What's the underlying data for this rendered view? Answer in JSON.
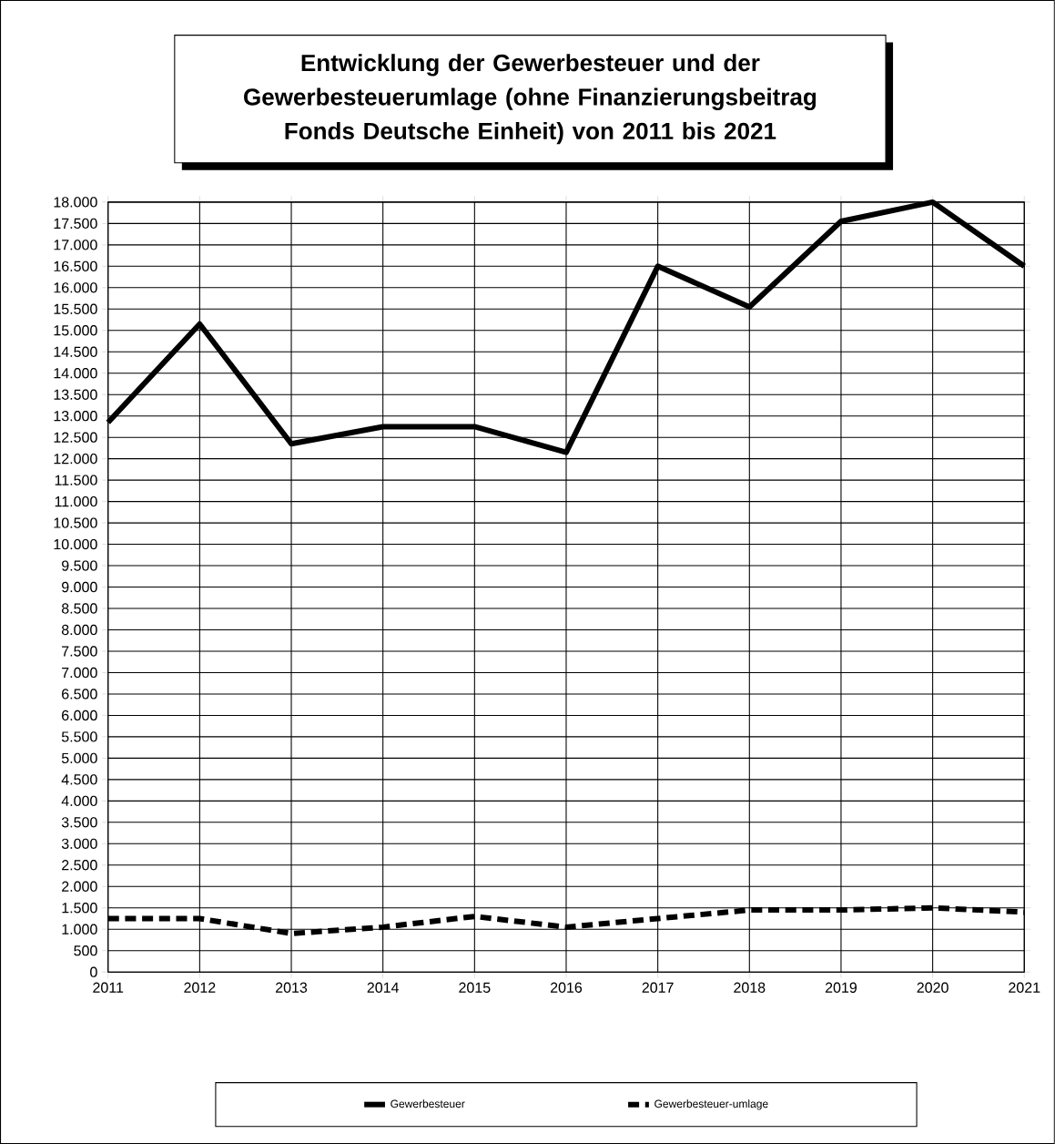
{
  "chart_data": {
    "type": "line",
    "title": "Entwicklung der Gewerbesteuer und der Gewerbesteuerumlage (ohne Finanzierungsbeitrag Fonds Deutsche Einheit)  von 2011 bis 2021",
    "x": [
      2011,
      2012,
      2013,
      2014,
      2015,
      2016,
      2017,
      2018,
      2019,
      2020,
      2021
    ],
    "series": [
      {
        "name": "Gewerbesteuer",
        "color": "#000000",
        "line_style": "solid",
        "values": [
          12850,
          15150,
          12350,
          12750,
          12750,
          12150,
          16500,
          15550,
          17550,
          18000,
          16500
        ]
      },
      {
        "name": "Gewerbesteuer-umlage",
        "color": "#000000",
        "line_style": "dashed",
        "values": [
          1250,
          1250,
          900,
          1050,
          1300,
          1050,
          1250,
          1450,
          1450,
          1500,
          1400
        ]
      }
    ],
    "xlim": [
      2011,
      2021
    ],
    "xticks": [
      2011,
      2012,
      2013,
      2014,
      2015,
      2016,
      2017,
      2018,
      2019,
      2020,
      2021
    ],
    "ylim": [
      0,
      18000
    ],
    "yticks": [
      0,
      500,
      {
        "value": 1000,
        "label": "1.000"
      },
      {
        "value": 1500,
        "label": "1.500"
      },
      {
        "value": 2000,
        "label": "2.000"
      },
      {
        "value": 2500,
        "label": "2.500"
      },
      {
        "value": 3000,
        "label": "3.000"
      },
      {
        "value": 3500,
        "label": "3.500"
      },
      {
        "value": 4000,
        "label": "4.000"
      },
      {
        "value": 4500,
        "label": "4.500"
      },
      {
        "value": 5000,
        "label": "5.000"
      },
      {
        "value": 5500,
        "label": "5.500"
      },
      {
        "value": 6000,
        "label": "6.000"
      },
      {
        "value": 6500,
        "label": "6.500"
      },
      {
        "value": 7000,
        "label": "7.000"
      },
      {
        "value": 7500,
        "label": "7.500"
      },
      {
        "value": 8000,
        "label": "8.000"
      },
      {
        "value": 8500,
        "label": "8.500"
      },
      {
        "value": 9000,
        "label": "9.000"
      },
      {
        "value": 9500,
        "label": "9.500"
      },
      {
        "value": 10000,
        "label": "10.000"
      },
      {
        "value": 10500,
        "label": "10.500"
      },
      {
        "value": 11000,
        "label": "11.000"
      },
      {
        "value": 11500,
        "label": "11.500"
      },
      {
        "value": 12000,
        "label": "12.000"
      },
      {
        "value": 12500,
        "label": "12.500"
      },
      {
        "value": 13000,
        "label": "13.000"
      },
      {
        "value": 13500,
        "label": "13.500"
      },
      {
        "value": 14000,
        "label": "14.000"
      },
      {
        "value": 14500,
        "label": "14.500"
      },
      {
        "value": 15000,
        "label": "15.000"
      },
      {
        "value": 15500,
        "label": "15.500"
      },
      {
        "value": 16000,
        "label": "16.000"
      },
      {
        "value": 16500,
        "label": "16.500"
      },
      {
        "value": 17000,
        "label": "17.000"
      },
      {
        "value": 17500,
        "label": "17.500"
      },
      {
        "value": 18000,
        "label": "18.000"
      }
    ],
    "grid": true,
    "legend": "bottom",
    "marker": "none"
  }
}
